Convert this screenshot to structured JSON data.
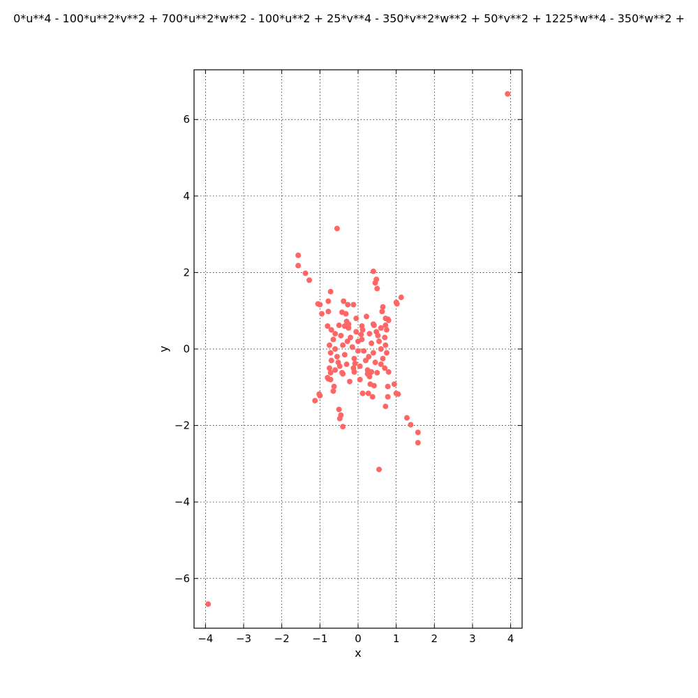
{
  "chart_data": {
    "type": "scatter",
    "title": "0*u**4 - 100*u**2*v**2 + 700*u**2*w**2 - 100*u**2 + 25*v**4 - 350*v**2*w**2 + 50*v**2 + 1225*w**4 - 350*w**2 +",
    "xlabel": "x",
    "ylabel": "y",
    "xlim": [
      -4.3,
      4.3
    ],
    "ylim": [
      -7.3,
      7.3
    ],
    "xticks": [
      -4,
      -3,
      -2,
      -1,
      0,
      1,
      2,
      3,
      4
    ],
    "xtick_labels": [
      "−4",
      "−3",
      "−2",
      "−1",
      "0",
      "1",
      "2",
      "3",
      "4"
    ],
    "yticks": [
      -6,
      -4,
      -2,
      0,
      2,
      4,
      6
    ],
    "ytick_labels": [
      "−6",
      "−4",
      "−2",
      "0",
      "2",
      "4",
      "6"
    ],
    "grid": true,
    "marker_color": "#ff6666",
    "series": [
      {
        "points": [
          [
            3.92,
            6.67
          ],
          [
            -3.93,
            -6.67
          ],
          [
            -0.55,
            3.15
          ],
          [
            0.55,
            -3.15
          ],
          [
            -1.57,
            2.45
          ],
          [
            -1.57,
            2.18
          ],
          [
            -1.38,
            1.98
          ],
          [
            -1.28,
            1.8
          ],
          [
            1.57,
            -2.45
          ],
          [
            1.57,
            -2.18
          ],
          [
            1.38,
            -1.98
          ],
          [
            1.28,
            -1.8
          ],
          [
            0.4,
            2.03
          ],
          [
            0.48,
            1.82
          ],
          [
            0.45,
            1.73
          ],
          [
            0.5,
            1.58
          ],
          [
            -0.4,
            -2.03
          ],
          [
            -0.48,
            -1.82
          ],
          [
            -0.45,
            -1.73
          ],
          [
            -0.5,
            -1.58
          ],
          [
            -0.72,
            1.5
          ],
          [
            -0.78,
            1.25
          ],
          [
            -1.05,
            1.18
          ],
          [
            -1.0,
            1.16
          ],
          [
            -0.95,
            0.92
          ],
          [
            -0.78,
            0.98
          ],
          [
            0.72,
            -1.5
          ],
          [
            0.78,
            -1.25
          ],
          [
            1.05,
            -1.18
          ],
          [
            1.0,
            -1.16
          ],
          [
            0.95,
            -0.92
          ],
          [
            0.78,
            -0.98
          ],
          [
            1.0,
            1.22
          ],
          [
            1.02,
            1.18
          ],
          [
            1.13,
            1.35
          ],
          [
            0.65,
            1.1
          ],
          [
            0.63,
            0.98
          ],
          [
            0.22,
            0.85
          ],
          [
            -1.0,
            -1.22
          ],
          [
            -1.02,
            -1.18
          ],
          [
            -1.13,
            -1.35
          ],
          [
            -0.65,
            -1.1
          ],
          [
            -0.63,
            -0.98
          ],
          [
            -0.22,
            -0.85
          ],
          [
            -0.38,
            1.25
          ],
          [
            -0.27,
            1.16
          ],
          [
            -0.12,
            1.16
          ],
          [
            -0.32,
            0.92
          ],
          [
            -0.42,
            0.96
          ],
          [
            0.38,
            -1.25
          ],
          [
            0.27,
            -1.16
          ],
          [
            0.12,
            -1.16
          ],
          [
            0.32,
            -0.92
          ],
          [
            0.42,
            -0.96
          ],
          [
            0.78,
            0.78
          ],
          [
            0.72,
            0.8
          ],
          [
            0.4,
            0.65
          ],
          [
            0.1,
            0.6
          ],
          [
            -0.05,
            0.8
          ],
          [
            -0.78,
            -0.78
          ],
          [
            -0.72,
            -0.8
          ],
          [
            -0.4,
            -0.65
          ],
          [
            -0.1,
            -0.6
          ],
          [
            0.05,
            -0.8
          ],
          [
            -0.8,
            0.6
          ],
          [
            -0.7,
            0.5
          ],
          [
            -0.6,
            0.4
          ],
          [
            -0.65,
            0.25
          ],
          [
            -0.75,
            0.1
          ],
          [
            -0.72,
            -0.1
          ],
          [
            -0.7,
            -0.3
          ],
          [
            -0.75,
            -0.5
          ],
          [
            -0.8,
            -0.75
          ],
          [
            -0.72,
            -0.62
          ],
          [
            -0.6,
            -0.55
          ],
          [
            -0.55,
            -0.2
          ],
          [
            0.8,
            -0.6
          ],
          [
            0.7,
            -0.5
          ],
          [
            0.6,
            -0.4
          ],
          [
            0.65,
            -0.25
          ],
          [
            0.75,
            -0.1
          ],
          [
            0.72,
            0.1
          ],
          [
            0.7,
            0.3
          ],
          [
            0.75,
            0.5
          ],
          [
            0.8,
            0.75
          ],
          [
            0.72,
            0.62
          ],
          [
            0.6,
            0.55
          ],
          [
            0.55,
            0.2
          ],
          [
            -0.5,
            0.62
          ],
          [
            -0.45,
            0.35
          ],
          [
            -0.4,
            0.1
          ],
          [
            -0.35,
            -0.15
          ],
          [
            -0.3,
            -0.4
          ],
          [
            -0.25,
            0.55
          ],
          [
            -0.2,
            0.3
          ],
          [
            -0.15,
            0.05
          ],
          [
            -0.1,
            -0.25
          ],
          [
            -0.05,
            0.45
          ],
          [
            0.0,
            0.2
          ],
          [
            0.0,
            -0.05
          ],
          [
            0.05,
            -0.45
          ],
          [
            0.1,
            0.25
          ],
          [
            0.15,
            -0.05
          ],
          [
            0.2,
            -0.3
          ],
          [
            0.25,
            -0.55
          ],
          [
            0.3,
            0.4
          ],
          [
            0.35,
            0.15
          ],
          [
            0.4,
            -0.1
          ],
          [
            0.45,
            -0.35
          ],
          [
            0.5,
            -0.62
          ],
          [
            -0.6,
            0.0
          ],
          [
            0.6,
            0.0
          ],
          [
            -0.48,
            -0.45
          ],
          [
            0.48,
            0.45
          ],
          [
            -0.28,
            0.2
          ],
          [
            0.28,
            -0.2
          ],
          [
            -0.12,
            -0.5
          ],
          [
            0.12,
            0.5
          ],
          [
            0.3,
            -0.72
          ],
          [
            0.35,
            -0.6
          ],
          [
            0.25,
            -0.65
          ],
          [
            -0.3,
            0.72
          ],
          [
            -0.35,
            0.6
          ],
          [
            -0.25,
            0.65
          ],
          [
            0.52,
            0.35
          ],
          [
            -0.52,
            -0.35
          ],
          [
            0.08,
            0.38
          ],
          [
            -0.08,
            -0.38
          ],
          [
            -0.42,
            -0.62
          ],
          [
            0.42,
            0.62
          ]
        ]
      }
    ]
  }
}
